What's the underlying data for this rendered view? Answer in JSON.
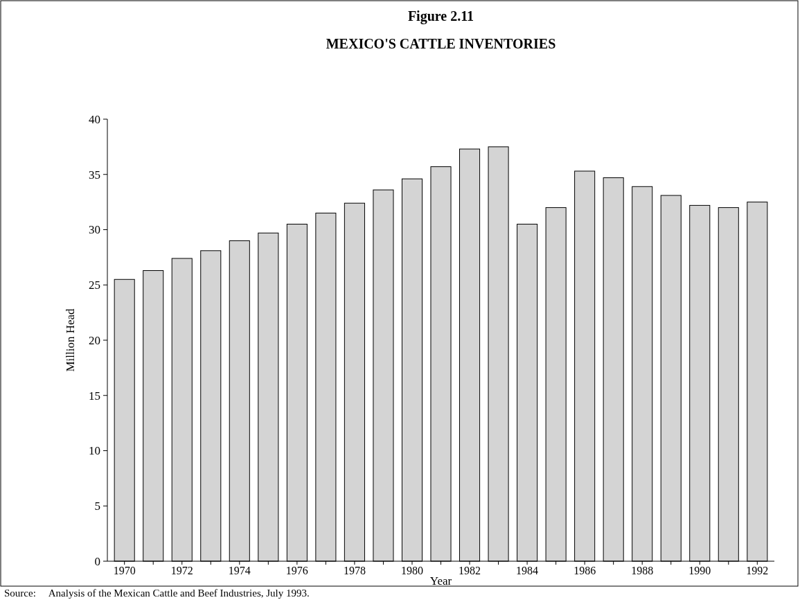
{
  "chart_data": {
    "type": "bar",
    "title": "Figure 2.11",
    "subtitle": "MEXICO'S CATTLE INVENTORIES",
    "xlabel": "Year",
    "ylabel": "Million Head",
    "categories": [
      "1970",
      null,
      "1972",
      null,
      "1974",
      null,
      "1976",
      null,
      "1978",
      null,
      "1980",
      null,
      "1982",
      null,
      "1984",
      null,
      "1986",
      null,
      "1988",
      null,
      "1990",
      null,
      "1992"
    ],
    "values": [
      25.5,
      26.3,
      27.4,
      28.1,
      29.0,
      29.7,
      30.5,
      31.5,
      32.4,
      33.6,
      34.6,
      35.7,
      37.3,
      37.5,
      30.5,
      32.0,
      35.3,
      34.7,
      33.9,
      33.1,
      32.2,
      32.0,
      32.5
    ],
    "color": "#d4d4d4",
    "ylim": [
      0,
      40
    ],
    "yticks": [
      0,
      5,
      10,
      15,
      20,
      25,
      30,
      35,
      40
    ],
    "grid": false,
    "annotations": [
      "Source:     Analysis of the Mexican Cattle and Beef Industries, July 1993."
    ]
  }
}
